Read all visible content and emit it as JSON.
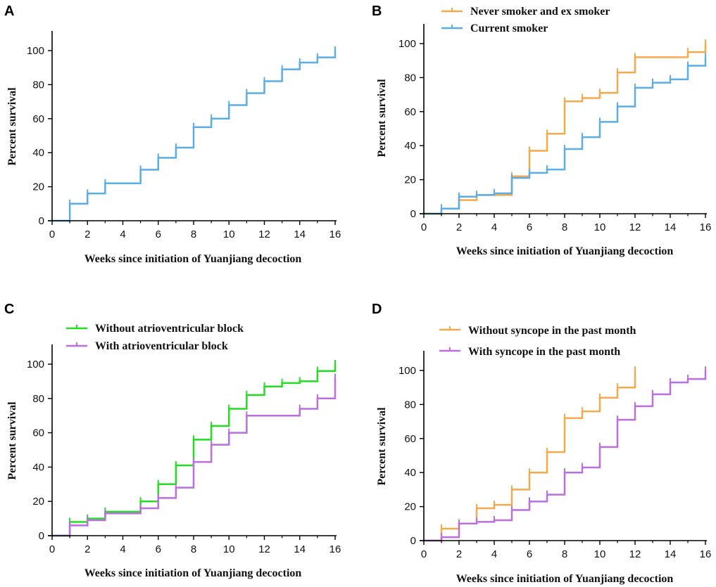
{
  "chart_data": [
    {
      "type": "line",
      "panel": "A",
      "title": "",
      "xlabel": "Weeks since initiation of Yuanjiang decoction",
      "ylabel": "Percent survival",
      "xlim": [
        0,
        16
      ],
      "ylim": [
        0,
        100
      ],
      "xticks": [
        "0",
        "2",
        "4",
        "6",
        "8",
        "10",
        "12",
        "14",
        "16"
      ],
      "yticks": [
        "0",
        "20",
        "40",
        "60",
        "80",
        "100"
      ],
      "series": [
        {
          "name": "",
          "color": "#5aaee5",
          "steps": [
            [
              0,
              0
            ],
            [
              1,
              10
            ],
            [
              2,
              16
            ],
            [
              3,
              22
            ],
            [
              5,
              30
            ],
            [
              6,
              37
            ],
            [
              7,
              43
            ],
            [
              8,
              55
            ],
            [
              9,
              60
            ],
            [
              10,
              68
            ],
            [
              11,
              75
            ],
            [
              12,
              82
            ],
            [
              13,
              89
            ],
            [
              14,
              93
            ],
            [
              15,
              96
            ],
            [
              16,
              100
            ]
          ],
          "end": 16
        }
      ]
    },
    {
      "type": "line",
      "panel": "B",
      "title": "",
      "xlabel": "Weeks since initiation of Yuanjiang decoction",
      "ylabel": "Percent survival",
      "xlim": [
        0,
        16
      ],
      "ylim": [
        0,
        100
      ],
      "xticks": [
        "0",
        "2",
        "4",
        "6",
        "8",
        "10",
        "12",
        "14",
        "16"
      ],
      "yticks": [
        "0",
        "20",
        "40",
        "60",
        "80",
        "100"
      ],
      "series": [
        {
          "name": "Never smoker and ex smoker",
          "color": "#f5a94d",
          "steps": [
            [
              0,
              0
            ],
            [
              1,
              3
            ],
            [
              2,
              8
            ],
            [
              3,
              11
            ],
            [
              5,
              22
            ],
            [
              6,
              37
            ],
            [
              7,
              47
            ],
            [
              8,
              66
            ],
            [
              9,
              68
            ],
            [
              10,
              71
            ],
            [
              11,
              83
            ],
            [
              12,
              92
            ],
            [
              15,
              95
            ],
            [
              16,
              100
            ]
          ],
          "end": 16
        },
        {
          "name": "Current smoker",
          "color": "#5aaee5",
          "steps": [
            [
              0,
              0
            ],
            [
              1,
              3
            ],
            [
              2,
              10
            ],
            [
              3,
              11
            ],
            [
              4,
              12
            ],
            [
              5,
              21
            ],
            [
              6,
              24
            ],
            [
              7,
              26
            ],
            [
              8,
              38
            ],
            [
              9,
              45
            ],
            [
              10,
              54
            ],
            [
              11,
              63
            ],
            [
              12,
              74
            ],
            [
              13,
              77
            ],
            [
              14,
              79
            ],
            [
              15,
              87
            ],
            [
              16,
              92
            ]
          ],
          "end": 16
        }
      ]
    },
    {
      "type": "line",
      "panel": "C",
      "title": "",
      "xlabel": "Weeks since initiation of Yuanjiang decoction",
      "ylabel": "Percent survival",
      "xlim": [
        0,
        16
      ],
      "ylim": [
        0,
        100
      ],
      "xticks": [
        "0",
        "2",
        "4",
        "6",
        "8",
        "10",
        "12",
        "14",
        "16"
      ],
      "yticks": [
        "0",
        "20",
        "40",
        "60",
        "80",
        "100"
      ],
      "series": [
        {
          "name": "Without atrioventricular block",
          "color": "#22dd22",
          "steps": [
            [
              0,
              0
            ],
            [
              1,
              8
            ],
            [
              2,
              10
            ],
            [
              3,
              14
            ],
            [
              5,
              20
            ],
            [
              6,
              30
            ],
            [
              7,
              41
            ],
            [
              8,
              56
            ],
            [
              9,
              64
            ],
            [
              10,
              74
            ],
            [
              11,
              82
            ],
            [
              12,
              87
            ],
            [
              13,
              89
            ],
            [
              14,
              90
            ],
            [
              15,
              96
            ],
            [
              16,
              100
            ]
          ],
          "end": 16
        },
        {
          "name": "With atrioventricular block",
          "color": "#bb6ee0",
          "steps": [
            [
              0,
              0
            ],
            [
              1,
              6
            ],
            [
              2,
              9
            ],
            [
              3,
              13
            ],
            [
              5,
              16
            ],
            [
              6,
              22
            ],
            [
              7,
              28
            ],
            [
              8,
              43
            ],
            [
              9,
              53
            ],
            [
              10,
              60
            ],
            [
              11,
              70
            ],
            [
              14,
              74
            ],
            [
              15,
              80
            ],
            [
              16,
              92
            ]
          ],
          "end": 16
        }
      ]
    },
    {
      "type": "line",
      "panel": "D",
      "title": "",
      "xlabel": "Weeks since initiation of Yuanjiang decoction",
      "ylabel": "Percent survival",
      "xlim": [
        0,
        16
      ],
      "ylim": [
        0,
        100
      ],
      "xticks": [
        "0",
        "2",
        "4",
        "6",
        "8",
        "10",
        "12",
        "14",
        "16"
      ],
      "yticks": [
        "0",
        "20",
        "40",
        "60",
        "80",
        "100"
      ],
      "series": [
        {
          "name": "Without syncope in the past month",
          "color": "#f5a94d",
          "steps": [
            [
              0,
              0
            ],
            [
              1,
              7
            ],
            [
              2,
              10
            ],
            [
              3,
              19
            ],
            [
              4,
              21
            ],
            [
              5,
              30
            ],
            [
              6,
              40
            ],
            [
              7,
              52
            ],
            [
              8,
              72
            ],
            [
              9,
              76
            ],
            [
              10,
              84
            ],
            [
              11,
              90
            ],
            [
              12,
              100
            ]
          ],
          "end": 12
        },
        {
          "name": "With syncope in the past month",
          "color": "#bb6ee0",
          "steps": [
            [
              0,
              0
            ],
            [
              1,
              2
            ],
            [
              2,
              10
            ],
            [
              3,
              11
            ],
            [
              4,
              12
            ],
            [
              5,
              18
            ],
            [
              6,
              23
            ],
            [
              7,
              27
            ],
            [
              8,
              40
            ],
            [
              9,
              43
            ],
            [
              10,
              55
            ],
            [
              11,
              71
            ],
            [
              12,
              79
            ],
            [
              13,
              86
            ],
            [
              14,
              93
            ],
            [
              15,
              95
            ],
            [
              16,
              100
            ]
          ],
          "end": 16
        }
      ]
    }
  ]
}
